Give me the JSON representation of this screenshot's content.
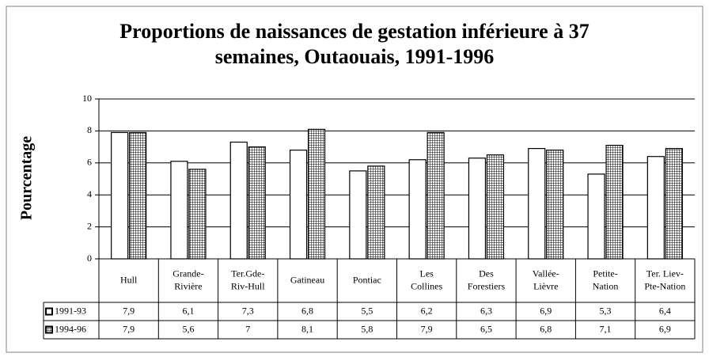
{
  "chart_data": {
    "type": "bar",
    "title": "Proportions de naissances de gestation inférieure à 37\nsemaines, Outaouais, 1991-1996",
    "y_label": "Pourcentage",
    "categories": [
      "Hull",
      "Grande-\nRivière",
      "Ter.Gde-\nRiv-Hull",
      "Gatineau",
      "Pontiac",
      "Les\nCollines",
      "Des\nForestiers",
      "Vallée-\nLièvre",
      "Petite-\nNation",
      "Ter. Liev-\nPte-Nation"
    ],
    "series": [
      {
        "name": "1991-93",
        "color": "#ffffff",
        "pattern": null,
        "values": [
          7.9,
          6.1,
          7.3,
          6.8,
          5.5,
          6.2,
          6.3,
          6.9,
          5.3,
          6.4
        ],
        "value_labels": [
          "7,9",
          "6,1",
          "7,3",
          "6,8",
          "5,5",
          "6,2",
          "6,3",
          "6,9",
          "5,3",
          "6,4"
        ]
      },
      {
        "name": "1994-96",
        "color": "#ffffff",
        "pattern": "grid",
        "values": [
          7.9,
          5.6,
          7,
          8.1,
          5.8,
          7.9,
          6.5,
          6.8,
          7.1,
          6.9
        ],
        "value_labels": [
          "7,9",
          "5,6",
          "7",
          "8,1",
          "5,8",
          "7,9",
          "6,5",
          "6,8",
          "7,1",
          "6,9"
        ]
      }
    ],
    "ylim": [
      0,
      10
    ],
    "yticks": [
      0,
      2,
      4,
      6,
      8,
      10
    ],
    "grid": true,
    "data_table": true
  }
}
